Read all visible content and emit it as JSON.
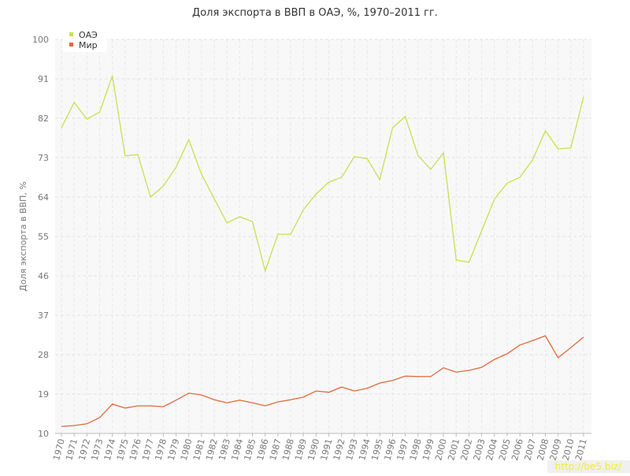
{
  "chart_data": {
    "type": "line",
    "title": "Доля экспорта в ВВП в ОАЭ, %, 1970–2011 гг.",
    "y_label": "Доля экспорта в ВВП, %",
    "categories": [
      "1970",
      "1971",
      "1972",
      "1973",
      "1974",
      "1975",
      "1976",
      "1977",
      "1978",
      "1979",
      "1980",
      "1981",
      "1982",
      "1983",
      "1984",
      "1985",
      "1986",
      "1987",
      "1988",
      "1989",
      "1990",
      "1991",
      "1992",
      "1993",
      "1994",
      "1995",
      "1996",
      "1997",
      "1998",
      "1999",
      "2000",
      "2001",
      "2002",
      "2003",
      "2004",
      "2005",
      "2006",
      "2007",
      "2008",
      "2009",
      "2010",
      "2011"
    ],
    "series": [
      {
        "name": "ОАЭ",
        "color": "#c8df52",
        "values": [
          79.8,
          85.6,
          81.8,
          83.4,
          91.7,
          73.4,
          73.7,
          64.0,
          66.5,
          70.8,
          77.1,
          69.2,
          63.6,
          58.1,
          59.5,
          58.4,
          47.1,
          55.5,
          55.5,
          61.1,
          64.7,
          67.4,
          68.5,
          73.2,
          72.8,
          68.0,
          79.8,
          82.4,
          73.5,
          70.3,
          74.1,
          49.6,
          49.1,
          56.3,
          63.5,
          67.2,
          68.5,
          72.5,
          79.1,
          75.0,
          75.2,
          86.9
        ]
      },
      {
        "name": "Мир",
        "color": "#e2683c",
        "values": [
          11.6,
          11.8,
          12.2,
          13.6,
          16.7,
          15.8,
          16.3,
          16.3,
          16.1,
          17.6,
          19.2,
          18.8,
          17.7,
          17.0,
          17.6,
          17.0,
          16.3,
          17.2,
          17.7,
          18.3,
          19.7,
          19.4,
          20.6,
          19.7,
          20.3,
          21.5,
          22.1,
          23.1,
          23.0,
          23.0,
          25.0,
          24.0,
          24.4,
          25.1,
          26.9,
          28.2,
          30.2,
          31.2,
          32.3,
          27.3,
          29.6,
          32.0
        ]
      }
    ],
    "ylim": [
      10,
      100
    ],
    "yticks": [
      10,
      19,
      28,
      37,
      46,
      55,
      64,
      73,
      82,
      91,
      100
    ],
    "grid": true,
    "legend": "top-left",
    "watermark": "http://be5.biz/"
  }
}
